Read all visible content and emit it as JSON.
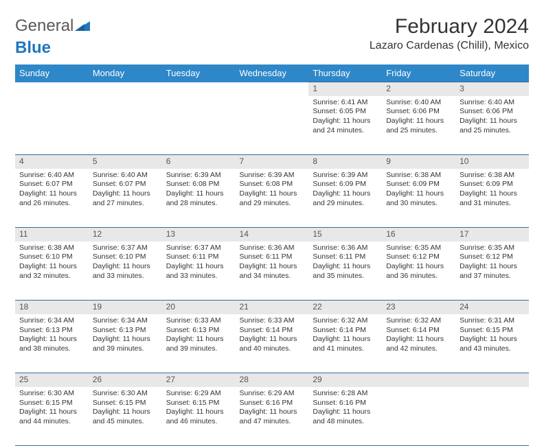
{
  "logo": {
    "text1": "General",
    "text2": "Blue"
  },
  "title": "February 2024",
  "location": "Lazaro Cardenas (Chilil), Mexico",
  "day_headers": [
    "Sunday",
    "Monday",
    "Tuesday",
    "Wednesday",
    "Thursday",
    "Friday",
    "Saturday"
  ],
  "colors": {
    "header_bg": "#2e87c8",
    "header_text": "#ffffff",
    "daynum_bg": "#e8e8e8",
    "border": "#2e6ca0",
    "logo_blue": "#2176bd"
  },
  "weeks": [
    [
      null,
      null,
      null,
      null,
      {
        "n": "1",
        "sunrise": "6:41 AM",
        "sunset": "6:05 PM",
        "dl1": "Daylight: 11 hours",
        "dl2": "and 24 minutes."
      },
      {
        "n": "2",
        "sunrise": "6:40 AM",
        "sunset": "6:06 PM",
        "dl1": "Daylight: 11 hours",
        "dl2": "and 25 minutes."
      },
      {
        "n": "3",
        "sunrise": "6:40 AM",
        "sunset": "6:06 PM",
        "dl1": "Daylight: 11 hours",
        "dl2": "and 25 minutes."
      }
    ],
    [
      {
        "n": "4",
        "sunrise": "6:40 AM",
        "sunset": "6:07 PM",
        "dl1": "Daylight: 11 hours",
        "dl2": "and 26 minutes."
      },
      {
        "n": "5",
        "sunrise": "6:40 AM",
        "sunset": "6:07 PM",
        "dl1": "Daylight: 11 hours",
        "dl2": "and 27 minutes."
      },
      {
        "n": "6",
        "sunrise": "6:39 AM",
        "sunset": "6:08 PM",
        "dl1": "Daylight: 11 hours",
        "dl2": "and 28 minutes."
      },
      {
        "n": "7",
        "sunrise": "6:39 AM",
        "sunset": "6:08 PM",
        "dl1": "Daylight: 11 hours",
        "dl2": "and 29 minutes."
      },
      {
        "n": "8",
        "sunrise": "6:39 AM",
        "sunset": "6:09 PM",
        "dl1": "Daylight: 11 hours",
        "dl2": "and 29 minutes."
      },
      {
        "n": "9",
        "sunrise": "6:38 AM",
        "sunset": "6:09 PM",
        "dl1": "Daylight: 11 hours",
        "dl2": "and 30 minutes."
      },
      {
        "n": "10",
        "sunrise": "6:38 AM",
        "sunset": "6:09 PM",
        "dl1": "Daylight: 11 hours",
        "dl2": "and 31 minutes."
      }
    ],
    [
      {
        "n": "11",
        "sunrise": "6:38 AM",
        "sunset": "6:10 PM",
        "dl1": "Daylight: 11 hours",
        "dl2": "and 32 minutes."
      },
      {
        "n": "12",
        "sunrise": "6:37 AM",
        "sunset": "6:10 PM",
        "dl1": "Daylight: 11 hours",
        "dl2": "and 33 minutes."
      },
      {
        "n": "13",
        "sunrise": "6:37 AM",
        "sunset": "6:11 PM",
        "dl1": "Daylight: 11 hours",
        "dl2": "and 33 minutes."
      },
      {
        "n": "14",
        "sunrise": "6:36 AM",
        "sunset": "6:11 PM",
        "dl1": "Daylight: 11 hours",
        "dl2": "and 34 minutes."
      },
      {
        "n": "15",
        "sunrise": "6:36 AM",
        "sunset": "6:11 PM",
        "dl1": "Daylight: 11 hours",
        "dl2": "and 35 minutes."
      },
      {
        "n": "16",
        "sunrise": "6:35 AM",
        "sunset": "6:12 PM",
        "dl1": "Daylight: 11 hours",
        "dl2": "and 36 minutes."
      },
      {
        "n": "17",
        "sunrise": "6:35 AM",
        "sunset": "6:12 PM",
        "dl1": "Daylight: 11 hours",
        "dl2": "and 37 minutes."
      }
    ],
    [
      {
        "n": "18",
        "sunrise": "6:34 AM",
        "sunset": "6:13 PM",
        "dl1": "Daylight: 11 hours",
        "dl2": "and 38 minutes."
      },
      {
        "n": "19",
        "sunrise": "6:34 AM",
        "sunset": "6:13 PM",
        "dl1": "Daylight: 11 hours",
        "dl2": "and 39 minutes."
      },
      {
        "n": "20",
        "sunrise": "6:33 AM",
        "sunset": "6:13 PM",
        "dl1": "Daylight: 11 hours",
        "dl2": "and 39 minutes."
      },
      {
        "n": "21",
        "sunrise": "6:33 AM",
        "sunset": "6:14 PM",
        "dl1": "Daylight: 11 hours",
        "dl2": "and 40 minutes."
      },
      {
        "n": "22",
        "sunrise": "6:32 AM",
        "sunset": "6:14 PM",
        "dl1": "Daylight: 11 hours",
        "dl2": "and 41 minutes."
      },
      {
        "n": "23",
        "sunrise": "6:32 AM",
        "sunset": "6:14 PM",
        "dl1": "Daylight: 11 hours",
        "dl2": "and 42 minutes."
      },
      {
        "n": "24",
        "sunrise": "6:31 AM",
        "sunset": "6:15 PM",
        "dl1": "Daylight: 11 hours",
        "dl2": "and 43 minutes."
      }
    ],
    [
      {
        "n": "25",
        "sunrise": "6:30 AM",
        "sunset": "6:15 PM",
        "dl1": "Daylight: 11 hours",
        "dl2": "and 44 minutes."
      },
      {
        "n": "26",
        "sunrise": "6:30 AM",
        "sunset": "6:15 PM",
        "dl1": "Daylight: 11 hours",
        "dl2": "and 45 minutes."
      },
      {
        "n": "27",
        "sunrise": "6:29 AM",
        "sunset": "6:15 PM",
        "dl1": "Daylight: 11 hours",
        "dl2": "and 46 minutes."
      },
      {
        "n": "28",
        "sunrise": "6:29 AM",
        "sunset": "6:16 PM",
        "dl1": "Daylight: 11 hours",
        "dl2": "and 47 minutes."
      },
      {
        "n": "29",
        "sunrise": "6:28 AM",
        "sunset": "6:16 PM",
        "dl1": "Daylight: 11 hours",
        "dl2": "and 48 minutes."
      },
      null,
      null
    ]
  ]
}
